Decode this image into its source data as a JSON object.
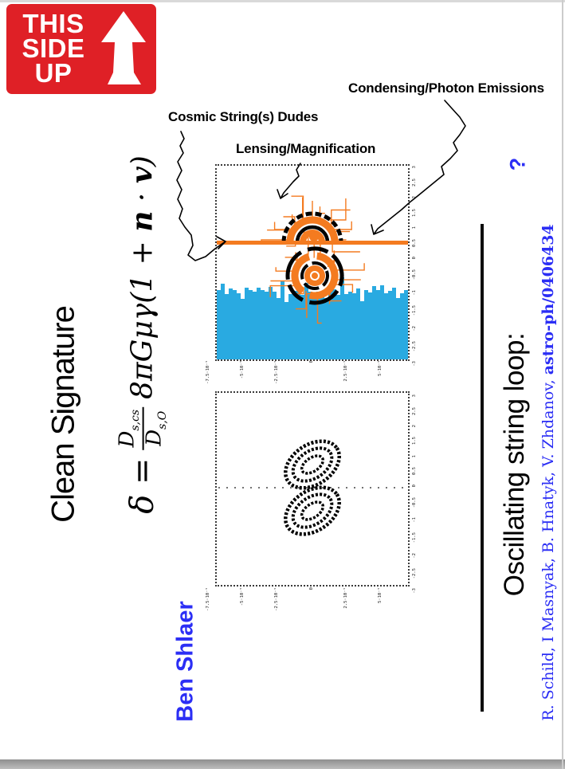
{
  "page": {
    "bg": "#ffffff",
    "top_strip": "#d9d9d9",
    "bottom_strip": "#9a9a9a",
    "edge_strip": "#cccccc"
  },
  "sticker": {
    "lines": [
      "THIS",
      "SIDE",
      "UP"
    ],
    "bg": "#df2026",
    "fg": "#ffffff",
    "arrow_icon": "up-arrow"
  },
  "slide": {
    "title": "Clean Signature",
    "author": "Ben Shlaer",
    "author_color": "#2b2ef5"
  },
  "formula": {
    "lhs": "δ =",
    "frac_num": "D",
    "frac_num_sub": "s,cs",
    "frac_den": "D",
    "frac_den_sub": "s,O",
    "tail_pre": "8πGμγ(1 + ",
    "vec_n": "n",
    "dot": " · ",
    "vec_v": "v",
    "tail_post": ")"
  },
  "annotations": {
    "condensing": "Condensing/Photon Emissions",
    "cosmic": "Cosmic String(s) Dudes",
    "lensing": "Lensing/Magnification"
  },
  "right_panel": {
    "question": "?",
    "heading": "Oscillating string loop:",
    "citation": "R. Schild,  I Masnyak,  B. Hnatyk,  V. Zhdanov, ",
    "citation_ref": "astro-ph/0406434",
    "color": "#2b2ef5"
  },
  "colors": {
    "string_orange": "#f47b20",
    "noise_blue": "#29aae1",
    "sticker_red": "#df2026",
    "accent_blue": "#2b2ef5"
  },
  "chart_data": [
    {
      "type": "line",
      "title": "",
      "xlabel": "",
      "ylabel": "",
      "description": "Upper panel: simulated light curve — horizontal orange cosmic-string line at mid-height, two orange/black concentric ring images (one above the string, one below) surrounded by orange photon-emission rays, and a solid blue noise band filling the bottom of the frame; dotted black axes frame.",
      "string_line_color": "#f47b20",
      "noise_color": "#29aae1",
      "x_tick_labels": [
        "-7.5·10⁻⁵",
        "-5·10⁻⁵",
        "-2.5·10⁻⁵",
        "0",
        "2.5·10⁻⁵",
        "5·10⁻⁵"
      ],
      "y_tick_labels": [
        "3",
        "2.5",
        "2",
        "1.5",
        "1",
        "0.5",
        "0",
        "-0.5",
        "-1",
        "-1.5",
        "-2",
        "-2.5",
        "-3"
      ]
    },
    {
      "type": "scatter",
      "title": "",
      "xlabel": "",
      "ylabel": "",
      "description": "Lower panel: two sets of three nested tilted elliptical contours (black, stippled), mirrored about a dotted horizontal mid-axis; dotted black axes frame.",
      "x_tick_labels": [
        "-7.5·10⁻⁵",
        "-5·10⁻⁵",
        "-2.5·10⁻⁵",
        "0",
        "2.5·10⁻⁵",
        "5·10⁻⁵"
      ],
      "y_tick_labels": [
        "3",
        "2.5",
        "2",
        "1.5",
        "1",
        "0.5",
        "0",
        "-0.5",
        "-1",
        "-1.5",
        "-2",
        "-2.5",
        "-3"
      ]
    }
  ]
}
